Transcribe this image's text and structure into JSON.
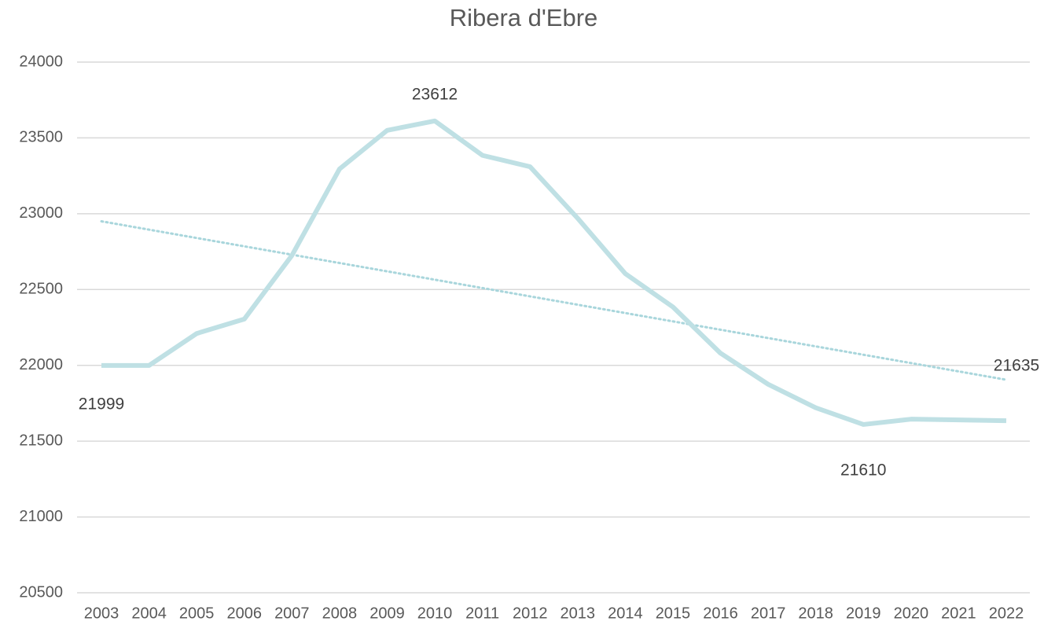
{
  "chart_data": {
    "type": "line",
    "title": "Ribera d'Ebre",
    "categories": [
      "2003",
      "2004",
      "2005",
      "2006",
      "2007",
      "2008",
      "2009",
      "2010",
      "2011",
      "2012",
      "2013",
      "2014",
      "2015",
      "2016",
      "2017",
      "2018",
      "2019",
      "2020",
      "2021",
      "2022"
    ],
    "series": [
      {
        "color": "#bfe0e4",
        "values": [
          21999,
          21999,
          22210,
          22305,
          22725,
          23295,
          23550,
          23612,
          23385,
          23310,
          22970,
          22605,
          22385,
          22080,
          21875,
          21720,
          21610,
          21645,
          21640,
          21635
        ],
        "value_labels": [
          "21999",
          null,
          null,
          null,
          null,
          null,
          null,
          "23612",
          null,
          null,
          null,
          null,
          null,
          null,
          null,
          null,
          "21610",
          null,
          null,
          "21635"
        ]
      }
    ],
    "trendline": {
      "color": "#a9d6dc",
      "values": [
        22950,
        21905
      ]
    },
    "ylim": [
      20500,
      24000
    ],
    "yticks": [
      20500,
      21000,
      21500,
      22000,
      22500,
      23000,
      23500,
      24000
    ],
    "grid": true
  }
}
